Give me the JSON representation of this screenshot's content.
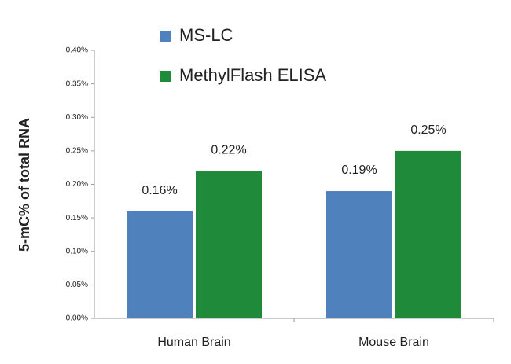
{
  "chart_data": {
    "type": "bar",
    "y_label": "5-mC% of total RNA",
    "categories": [
      "Human Brain",
      "Mouse Brain"
    ],
    "series": [
      {
        "name": "MS-LC",
        "color": "#4f81bd",
        "values": [
          0.16,
          0.19
        ],
        "value_labels": [
          "0.16%",
          "0.19%"
        ]
      },
      {
        "name": "MethylFlash ELISA",
        "color": "#1f8a3a",
        "values": [
          0.22,
          0.25
        ],
        "value_labels": [
          "0.22%",
          "0.25%"
        ]
      }
    ],
    "ylim": [
      0,
      0.4
    ],
    "yticks": [
      {
        "value": 0,
        "label": "0.00%"
      },
      {
        "value": 0.05,
        "label": "0.05%"
      },
      {
        "value": 0.1,
        "label": "0.10%"
      },
      {
        "value": 0.15,
        "label": "0.15%"
      },
      {
        "value": 0.2,
        "label": "0.20%"
      },
      {
        "value": 0.25,
        "label": "0.25%"
      },
      {
        "value": 0.3,
        "label": "0.30%"
      },
      {
        "value": 0.35,
        "label": "0.35%"
      },
      {
        "value": 0.4,
        "label": "0.40%"
      }
    ],
    "grid": false
  }
}
